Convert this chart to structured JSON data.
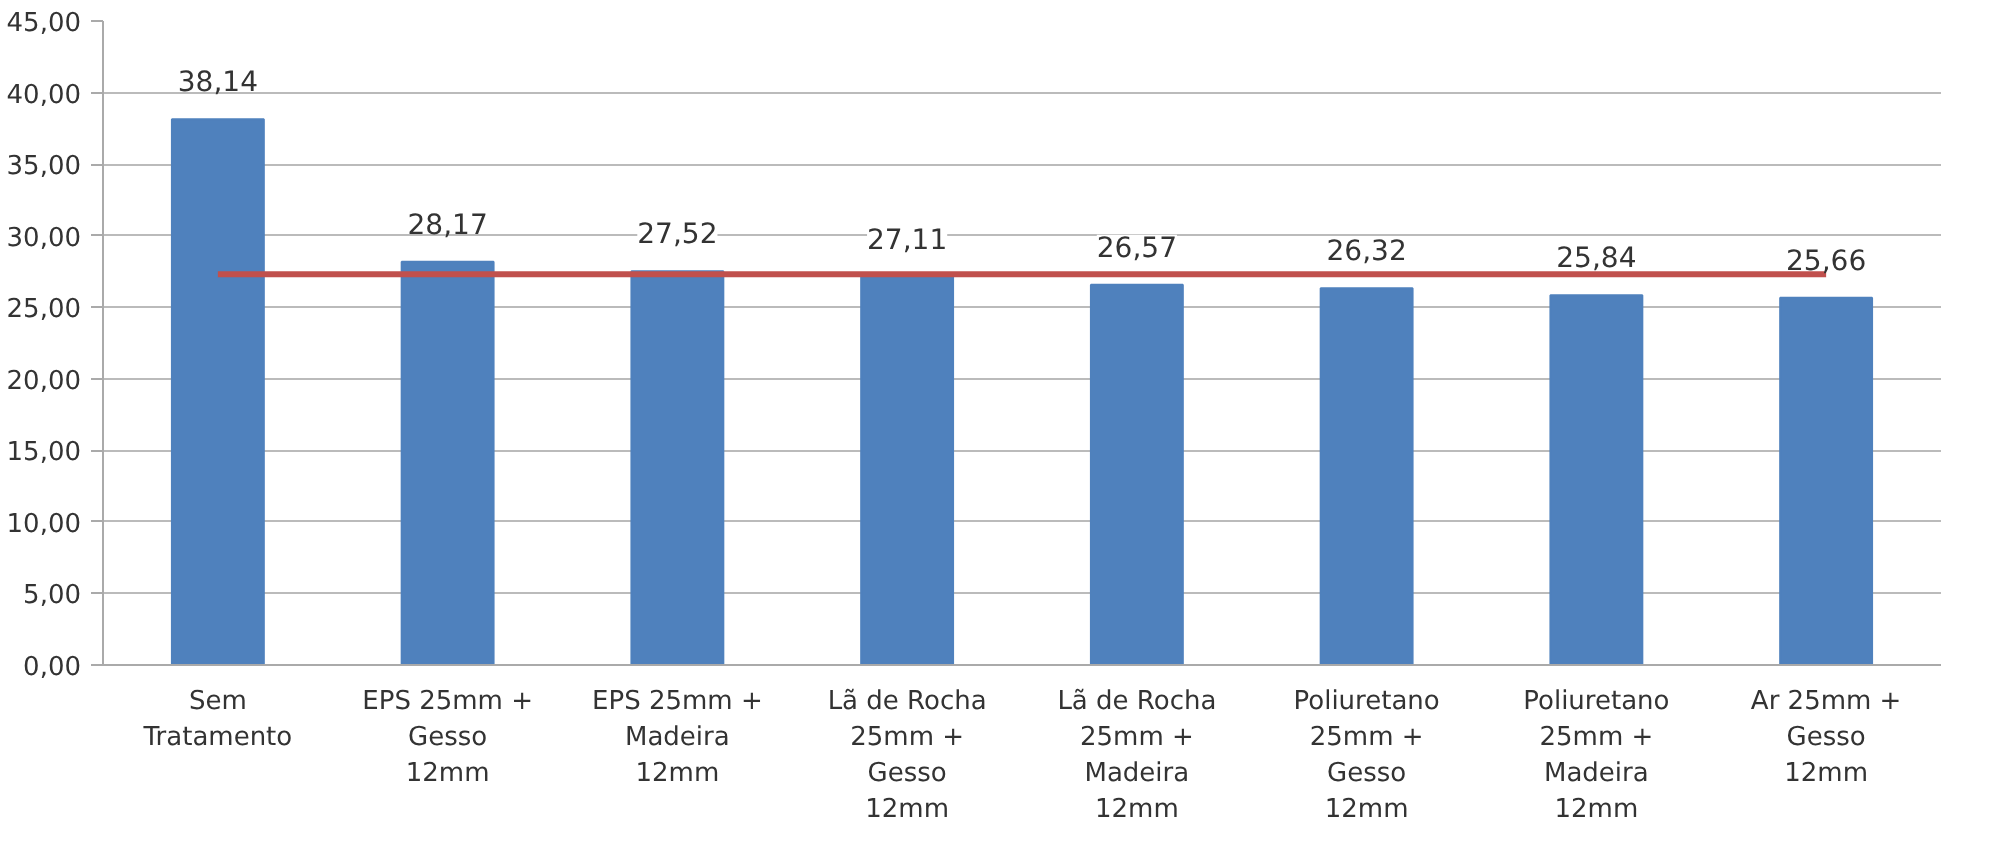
{
  "chart_data": {
    "type": "bar",
    "categories": [
      "Sem\nTratamento",
      "EPS 25mm +\nGesso\n12mm",
      "EPS 25mm +\nMadeira\n12mm",
      "Lã de Rocha\n25mm +\nGesso\n12mm",
      "Lã de Rocha\n25mm +\nMadeira\n12mm",
      "Poliuretano\n25mm +\nGesso\n12mm",
      "Poliuretano\n25mm +\nMadeira\n12mm",
      "Ar 25mm +\nGesso\n12mm"
    ],
    "series": [
      {
        "color": "#4f81bd",
        "values": [
          38.14,
          28.17,
          27.52,
          27.11,
          26.57,
          26.32,
          25.84,
          25.66
        ],
        "value_labels": [
          "38,14",
          "28,17",
          "27,52",
          "27,11",
          "26,57",
          "26,32",
          "25,84",
          "25,66"
        ]
      },
      {
        "type": "line",
        "color": "#c0504d",
        "values": [
          27.3,
          27.3,
          27.3,
          27.3,
          27.3,
          27.3,
          27.3,
          27.3
        ]
      }
    ],
    "ylim": [
      0,
      45
    ],
    "yticks": [
      {
        "value": 0,
        "label": "0,00"
      },
      {
        "value": 5,
        "label": "5,00"
      },
      {
        "value": 10,
        "label": "10,00"
      },
      {
        "value": 15,
        "label": "15,00"
      },
      {
        "value": 20,
        "label": "20,00"
      },
      {
        "value": 25,
        "label": "25,00"
      },
      {
        "value": 30,
        "label": "30,00"
      },
      {
        "value": 35,
        "label": "35,00"
      },
      {
        "value": 40,
        "label": "40,00"
      },
      {
        "value": 45,
        "label": "45,00"
      }
    ],
    "grid": "y"
  }
}
